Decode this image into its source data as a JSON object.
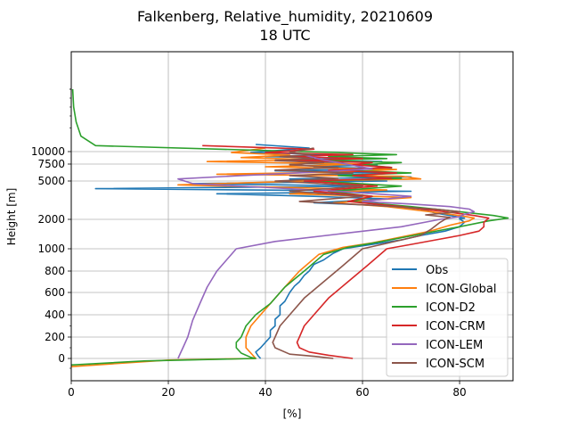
{
  "chart_data": {
    "type": "line",
    "title_line1": "Falkenberg, Relative_humidity, 20210609",
    "title_line2": "18 UTC",
    "xlabel": "[%]",
    "ylabel": "Height [m]",
    "xlim": [
      0,
      91
    ],
    "grid": true,
    "legend_position": "lower right",
    "x_ticks": [
      0,
      20,
      40,
      60,
      80
    ],
    "y_ticks": [
      {
        "label": "0",
        "value": 0
      },
      {
        "label": "200",
        "value": 200
      },
      {
        "label": "400",
        "value": 400
      },
      {
        "label": "600",
        "value": 600
      },
      {
        "label": "800",
        "value": 800
      },
      {
        "label": "1000",
        "value": 1000
      },
      {
        "label": "2000",
        "value": 2000
      },
      {
        "label": "5000",
        "value": 5000
      },
      {
        "label": "7500",
        "value": 7500
      },
      {
        "label": "10000",
        "value": 10000
      }
    ],
    "series": [
      {
        "name": "Obs",
        "color": "#1f77b4",
        "points": [
          [
            39,
            0
          ],
          [
            38.5,
            25
          ],
          [
            38,
            60
          ],
          [
            39,
            100
          ],
          [
            40,
            150
          ],
          [
            41,
            200
          ],
          [
            41,
            260
          ],
          [
            42,
            300
          ],
          [
            42,
            360
          ],
          [
            43,
            400
          ],
          [
            43,
            480
          ],
          [
            44,
            520
          ],
          [
            45,
            600
          ],
          [
            46,
            660
          ],
          [
            47,
            700
          ],
          [
            48,
            760
          ],
          [
            49,
            800
          ],
          [
            50,
            860
          ],
          [
            52,
            900
          ],
          [
            54,
            960
          ],
          [
            56,
            1000
          ],
          [
            60,
            1100
          ],
          [
            64,
            1200
          ],
          [
            68,
            1300
          ],
          [
            72,
            1450
          ],
          [
            77,
            1600
          ],
          [
            80,
            1750
          ],
          [
            81,
            1900
          ],
          [
            80,
            2050
          ],
          [
            81,
            2100
          ],
          [
            78,
            2300
          ],
          [
            75,
            2500
          ],
          [
            72,
            2800
          ],
          [
            62,
            3100
          ],
          [
            50,
            3300
          ],
          [
            65,
            3600
          ],
          [
            50,
            3800
          ],
          [
            30,
            4000
          ],
          [
            70,
            4200
          ],
          [
            5,
            4400
          ],
          [
            60,
            4600
          ],
          [
            25,
            4800
          ],
          [
            65,
            5000
          ],
          [
            45,
            5300
          ],
          [
            70,
            5600
          ],
          [
            50,
            5900
          ],
          [
            65,
            6200
          ],
          [
            42,
            6500
          ],
          [
            66,
            6800
          ],
          [
            50,
            7100
          ],
          [
            63,
            7400
          ],
          [
            45,
            7700
          ],
          [
            64,
            8000
          ],
          [
            42,
            8300
          ],
          [
            58,
            8600
          ],
          [
            40,
            9000
          ],
          [
            55,
            9400
          ],
          [
            37,
            9800
          ],
          [
            49,
            10300
          ],
          [
            38,
            10600
          ]
        ]
      },
      {
        "name": "ICON-Global",
        "color": "#ff7f0e",
        "points": [
          [
            0,
            -50
          ],
          [
            20,
            -10
          ],
          [
            38,
            0
          ],
          [
            37,
            50
          ],
          [
            36,
            100
          ],
          [
            36,
            200
          ],
          [
            37,
            300
          ],
          [
            39,
            400
          ],
          [
            41,
            500
          ],
          [
            44,
            650
          ],
          [
            47,
            800
          ],
          [
            51,
            950
          ],
          [
            56,
            1050
          ],
          [
            62,
            1200
          ],
          [
            68,
            1400
          ],
          [
            74,
            1600
          ],
          [
            78,
            1800
          ],
          [
            82,
            1950
          ],
          [
            83,
            2100
          ],
          [
            80,
            2300
          ],
          [
            74,
            2600
          ],
          [
            65,
            3000
          ],
          [
            54,
            3300
          ],
          [
            70,
            3700
          ],
          [
            45,
            4000
          ],
          [
            65,
            4300
          ],
          [
            22,
            4700
          ],
          [
            48,
            5000
          ],
          [
            72,
            5300
          ],
          [
            68,
            5700
          ],
          [
            30,
            6000
          ],
          [
            55,
            6300
          ],
          [
            67,
            6700
          ],
          [
            40,
            7100
          ],
          [
            60,
            7500
          ],
          [
            28,
            8000
          ],
          [
            50,
            8400
          ],
          [
            35,
            8800
          ],
          [
            45,
            9300
          ],
          [
            33,
            9800
          ],
          [
            40,
            10300
          ]
        ]
      },
      {
        "name": "ICON-D2",
        "color": "#2ca02c",
        "points": [
          [
            0,
            -40
          ],
          [
            15,
            -15
          ],
          [
            38,
            0
          ],
          [
            37,
            10
          ],
          [
            35,
            50
          ],
          [
            34,
            100
          ],
          [
            34,
            150
          ],
          [
            35,
            200
          ],
          [
            36,
            300
          ],
          [
            38,
            400
          ],
          [
            41,
            500
          ],
          [
            44,
            650
          ],
          [
            48,
            800
          ],
          [
            52,
            950
          ],
          [
            57,
            1050
          ],
          [
            64,
            1250
          ],
          [
            72,
            1500
          ],
          [
            80,
            1750
          ],
          [
            86,
            1950
          ],
          [
            90,
            2100
          ],
          [
            87,
            2300
          ],
          [
            80,
            2600
          ],
          [
            70,
            3000
          ],
          [
            58,
            3400
          ],
          [
            62,
            3800
          ],
          [
            53,
            4200
          ],
          [
            68,
            4600
          ],
          [
            50,
            5000
          ],
          [
            68,
            5400
          ],
          [
            55,
            5800
          ],
          [
            70,
            6200
          ],
          [
            55,
            6600
          ],
          [
            66,
            7000
          ],
          [
            60,
            7400
          ],
          [
            68,
            7800
          ],
          [
            50,
            8200
          ],
          [
            65,
            8600
          ],
          [
            53,
            9000
          ],
          [
            67,
            9400
          ],
          [
            55,
            9800
          ],
          [
            5,
            10500
          ],
          [
            2,
            11300
          ],
          [
            1,
            12500
          ],
          [
            0.5,
            14000
          ],
          [
            0.3,
            16000
          ]
        ]
      },
      {
        "name": "ICON-CRM",
        "color": "#d62728",
        "points": [
          [
            58,
            0
          ],
          [
            53,
            30
          ],
          [
            49,
            60
          ],
          [
            47,
            100
          ],
          [
            46.5,
            150
          ],
          [
            47,
            200
          ],
          [
            48,
            300
          ],
          [
            50,
            400
          ],
          [
            53,
            550
          ],
          [
            57,
            700
          ],
          [
            61,
            850
          ],
          [
            65,
            1000
          ],
          [
            70,
            1150
          ],
          [
            75,
            1300
          ],
          [
            80,
            1450
          ],
          [
            84,
            1600
          ],
          [
            85,
            1750
          ],
          [
            85,
            1900
          ],
          [
            86,
            2100
          ],
          [
            83,
            2300
          ],
          [
            77,
            2600
          ],
          [
            68,
            3000
          ],
          [
            57,
            3400
          ],
          [
            62,
            3800
          ],
          [
            50,
            4200
          ],
          [
            63,
            4600
          ],
          [
            48,
            5000
          ],
          [
            66,
            5400
          ],
          [
            58,
            5800
          ],
          [
            67,
            6200
          ],
          [
            53,
            6600
          ],
          [
            66,
            7000
          ],
          [
            58,
            7400
          ],
          [
            62,
            7800
          ],
          [
            45,
            8200
          ],
          [
            60,
            8600
          ],
          [
            45,
            9000
          ],
          [
            58,
            9400
          ],
          [
            40,
            9800
          ],
          [
            50,
            10200
          ],
          [
            27,
            10500
          ]
        ]
      },
      {
        "name": "ICON-LEM",
        "color": "#9467bd",
        "points": [
          [
            22,
            0
          ],
          [
            22.5,
            50
          ],
          [
            23,
            100
          ],
          [
            24,
            200
          ],
          [
            25,
            350
          ],
          [
            26.5,
            500
          ],
          [
            28,
            650
          ],
          [
            30,
            800
          ],
          [
            34,
            1000
          ],
          [
            42,
            1250
          ],
          [
            55,
            1500
          ],
          [
            68,
            1750
          ],
          [
            76,
            2000
          ],
          [
            80,
            2200
          ],
          [
            81,
            2400
          ],
          [
            83,
            2600
          ],
          [
            82,
            2800
          ],
          [
            78,
            3000
          ],
          [
            70,
            3200
          ],
          [
            60,
            3400
          ],
          [
            70,
            3800
          ],
          [
            55,
            4200
          ],
          [
            25,
            4800
          ],
          [
            22,
            5300
          ],
          [
            35,
            5800
          ],
          [
            50,
            6300
          ],
          [
            62,
            6800
          ],
          [
            58,
            7300
          ],
          [
            55,
            7800
          ],
          [
            52,
            8300
          ],
          [
            50,
            8800
          ],
          [
            48,
            9300
          ]
        ]
      },
      {
        "name": "ICON-SCM",
        "color": "#8c564b",
        "points": [
          [
            54,
            0
          ],
          [
            50,
            20
          ],
          [
            45,
            40
          ],
          [
            42,
            100
          ],
          [
            41.5,
            150
          ],
          [
            42,
            200
          ],
          [
            43,
            300
          ],
          [
            45,
            400
          ],
          [
            48,
            550
          ],
          [
            52,
            700
          ],
          [
            56,
            850
          ],
          [
            60,
            1000
          ],
          [
            64,
            1150
          ],
          [
            68,
            1300
          ],
          [
            72,
            1450
          ],
          [
            74,
            1650
          ],
          [
            76,
            1900
          ],
          [
            77,
            2000
          ],
          [
            78,
            2150
          ],
          [
            73,
            2350
          ],
          [
            80,
            2600
          ],
          [
            75,
            2800
          ],
          [
            62,
            3100
          ],
          [
            47,
            3400
          ],
          [
            60,
            3800
          ],
          [
            45,
            4200
          ],
          [
            60,
            4600
          ],
          [
            42,
            5000
          ],
          [
            55,
            5400
          ],
          [
            45,
            5800
          ],
          [
            58,
            6200
          ],
          [
            42,
            6600
          ],
          [
            55,
            7000
          ],
          [
            45,
            7400
          ],
          [
            52,
            7800
          ],
          [
            42,
            8200
          ],
          [
            50,
            8600
          ],
          [
            43,
            9000
          ],
          [
            50,
            9400
          ],
          [
            45,
            9800
          ],
          [
            50,
            10300
          ]
        ]
      }
    ]
  }
}
